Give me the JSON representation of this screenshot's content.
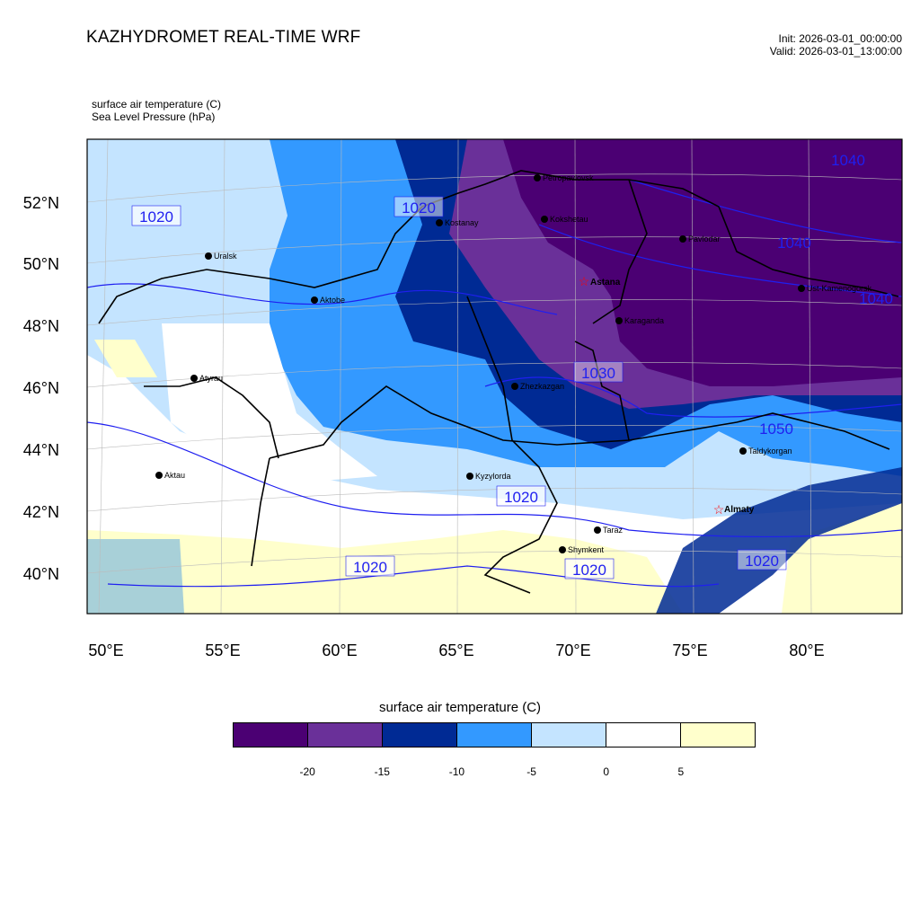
{
  "header": {
    "title": "KAZHYDROMET REAL-TIME WRF",
    "init": "Init: 2026-03-01_00:00:00",
    "valid": "Valid: 2026-03-01_13:00:00"
  },
  "fields": {
    "primary": "surface air temperature   (C)",
    "secondary": "Sea Level Pressure   (hPa)"
  },
  "axes": {
    "lon_labels": [
      "50°E",
      "55°E",
      "60°E",
      "65°E",
      "70°E",
      "75°E",
      "80°E"
    ],
    "lat_labels": [
      "52°N",
      "50°N",
      "48°N",
      "46°N",
      "44°N",
      "42°N",
      "40°N"
    ]
  },
  "cities": [
    {
      "name": "Uralsk",
      "capital": false
    },
    {
      "name": "Aktobe",
      "capital": false
    },
    {
      "name": "Atyrau",
      "capital": false
    },
    {
      "name": "Aktau",
      "capital": false
    },
    {
      "name": "Kostanay",
      "capital": false
    },
    {
      "name": "Petropavlovsk",
      "capital": false
    },
    {
      "name": "Kokshetau",
      "capital": false
    },
    {
      "name": "Pavlodar",
      "capital": false
    },
    {
      "name": "Astana",
      "capital": true
    },
    {
      "name": "Ust-Kamenogorsk",
      "capital": false
    },
    {
      "name": "Karaganda",
      "capital": false
    },
    {
      "name": "Zhezkazgan",
      "capital": false
    },
    {
      "name": "Kyzylorda",
      "capital": false
    },
    {
      "name": "Taldykorgan",
      "capital": false
    },
    {
      "name": "Almaty",
      "capital": true
    },
    {
      "name": "Taraz",
      "capital": false
    },
    {
      "name": "Shymkent",
      "capital": false
    }
  ],
  "isobar_labels": [
    "1020",
    "1020",
    "1020",
    "1020",
    "1020",
    "1020",
    "1030",
    "1040",
    "1040",
    "1040",
    "1050"
  ],
  "colorbar": {
    "title": "surface air temperature (C)",
    "colors": [
      "#4b0073",
      "#6a3099",
      "#002a94",
      "#3399ff",
      "#c4e4ff",
      "#ffffff",
      "#ffffcc"
    ],
    "ticks": [
      "-20",
      "-15",
      "-10",
      "-5",
      "0",
      "5"
    ]
  },
  "colors": {
    "isobar": "#1f1ff0",
    "border": "#000000",
    "capital_marker": "#ff0000",
    "sea": "#a8d0d8"
  }
}
